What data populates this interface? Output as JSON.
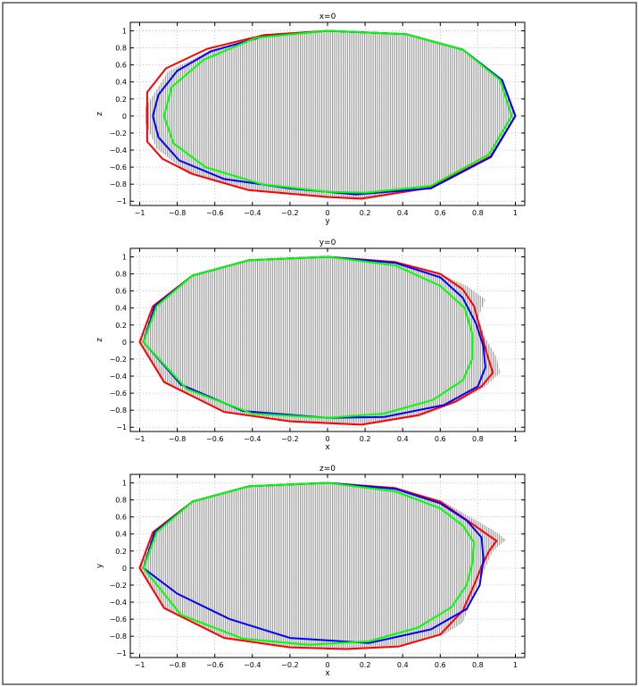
{
  "figure": {
    "frame_color": "#000000",
    "grid_color": "#9a9a9a",
    "hatch_color": "#8c8c8c",
    "background": "#ffffff"
  },
  "chart_data": [
    {
      "type": "line",
      "title": "x=0",
      "xlabel": "y",
      "ylabel": "z",
      "xlim": [
        -1.05,
        1.05
      ],
      "ylim": [
        -1.05,
        1.1
      ],
      "xticks": [
        -1,
        -0.8,
        -0.6,
        -0.4,
        -0.2,
        0,
        0.2,
        0.4,
        0.6,
        0.8,
        1
      ],
      "xticklabels": [
        "−1",
        "−0.8",
        "−0.6",
        "−0.4",
        "−0.2",
        "0",
        "0.2",
        "0.4",
        "0.6",
        "0.8",
        "1"
      ],
      "yticks": [
        -1,
        -0.8,
        -0.6,
        -0.4,
        -0.2,
        0,
        0.2,
        0.4,
        0.6,
        0.8,
        1
      ],
      "yticklabels": [
        "−1",
        "−0.8",
        "−0.6",
        "−0.4",
        "−0.2",
        "0",
        "0.2",
        "0.4",
        "0.6",
        "0.8",
        "1"
      ],
      "grid": true,
      "series": [
        {
          "color": "#808080",
          "style": "hatched-fill",
          "points": [
            [
              1.0,
              0.0
            ],
            [
              0.93,
              0.42
            ],
            [
              0.72,
              0.78
            ],
            [
              0.42,
              0.96
            ],
            [
              0.0,
              1.0
            ],
            [
              -0.32,
              0.94
            ],
            [
              -0.62,
              0.78
            ],
            [
              -0.85,
              0.52
            ],
            [
              -0.97,
              0.1
            ],
            [
              -0.97,
              -0.08
            ],
            [
              -0.91,
              -0.38
            ],
            [
              -0.74,
              -0.68
            ],
            [
              -0.42,
              -0.88
            ],
            [
              0.0,
              -0.96
            ],
            [
              0.18,
              -0.985
            ],
            [
              0.55,
              -0.85
            ],
            [
              0.87,
              -0.48
            ],
            [
              1.0,
              0.0
            ]
          ]
        },
        {
          "color": "#ff0000",
          "points": [
            [
              1.0,
              0.0
            ],
            [
              0.93,
              0.42
            ],
            [
              0.72,
              0.78
            ],
            [
              0.42,
              0.96
            ],
            [
              0.0,
              1.0
            ],
            [
              -0.34,
              0.95
            ],
            [
              -0.64,
              0.79
            ],
            [
              -0.86,
              0.56
            ],
            [
              -0.96,
              0.28
            ],
            [
              -0.96,
              -0.3
            ],
            [
              -0.88,
              -0.5
            ],
            [
              -0.72,
              -0.68
            ],
            [
              -0.42,
              -0.87
            ],
            [
              0.0,
              -0.95
            ],
            [
              0.18,
              -0.97
            ],
            [
              0.55,
              -0.84
            ],
            [
              0.87,
              -0.47
            ],
            [
              1.0,
              0.0
            ]
          ]
        },
        {
          "color": "#0000ff",
          "points": [
            [
              1.0,
              0.0
            ],
            [
              0.93,
              0.42
            ],
            [
              0.72,
              0.78
            ],
            [
              0.42,
              0.96
            ],
            [
              0.0,
              1.0
            ],
            [
              -0.35,
              0.93
            ],
            [
              -0.62,
              0.76
            ],
            [
              -0.8,
              0.53
            ],
            [
              -0.9,
              0.25
            ],
            [
              -0.93,
              0.0
            ],
            [
              -0.9,
              -0.25
            ],
            [
              -0.79,
              -0.52
            ],
            [
              -0.55,
              -0.74
            ],
            [
              -0.2,
              -0.85
            ],
            [
              0.15,
              -0.92
            ],
            [
              0.55,
              -0.85
            ],
            [
              0.87,
              -0.48
            ],
            [
              1.0,
              0.0
            ]
          ]
        },
        {
          "color": "#00ff00",
          "points": [
            [
              0.98,
              0.0
            ],
            [
              0.92,
              0.42
            ],
            [
              0.72,
              0.78
            ],
            [
              0.42,
              0.96
            ],
            [
              0.0,
              1.0
            ],
            [
              -0.38,
              0.92
            ],
            [
              -0.66,
              0.66
            ],
            [
              -0.83,
              0.34
            ],
            [
              -0.87,
              0.0
            ],
            [
              -0.82,
              -0.32
            ],
            [
              -0.65,
              -0.6
            ],
            [
              -0.35,
              -0.8
            ],
            [
              0.0,
              -0.89
            ],
            [
              0.2,
              -0.9
            ],
            [
              0.55,
              -0.82
            ],
            [
              0.86,
              -0.45
            ],
            [
              0.98,
              0.0
            ]
          ]
        }
      ]
    },
    {
      "type": "line",
      "title": "y=0",
      "xlabel": "x",
      "ylabel": "z",
      "xlim": [
        -1.05,
        1.05
      ],
      "ylim": [
        -1.05,
        1.1
      ],
      "xticks": [
        -1,
        -0.8,
        -0.6,
        -0.4,
        -0.2,
        0,
        0.2,
        0.4,
        0.6,
        0.8,
        1
      ],
      "xticklabels": [
        "−1",
        "−0.8",
        "−0.6",
        "−0.4",
        "−0.2",
        "0",
        "0.2",
        "0.4",
        "0.6",
        "0.8",
        "1"
      ],
      "yticks": [
        -1,
        -0.8,
        -0.6,
        -0.4,
        -0.2,
        0,
        0.2,
        0.4,
        0.6,
        0.8,
        1
      ],
      "yticklabels": [
        "−1",
        "−0.8",
        "−0.6",
        "−0.4",
        "−0.2",
        "0",
        "0.2",
        "0.4",
        "0.6",
        "0.8",
        "1"
      ],
      "grid": true,
      "series": [
        {
          "color": "#808080",
          "style": "hatched-fill",
          "points": [
            [
              -1.0,
              0.0
            ],
            [
              -0.93,
              0.42
            ],
            [
              -0.72,
              0.78
            ],
            [
              -0.42,
              0.96
            ],
            [
              0.0,
              1.0
            ],
            [
              0.34,
              0.94
            ],
            [
              0.6,
              0.8
            ],
            [
              0.74,
              0.66
            ],
            [
              0.84,
              0.5
            ],
            [
              0.8,
              0.28
            ],
            [
              0.84,
              0.05
            ],
            [
              0.9,
              -0.18
            ],
            [
              0.92,
              -0.36
            ],
            [
              0.84,
              -0.52
            ],
            [
              0.7,
              -0.7
            ],
            [
              0.5,
              -0.87
            ],
            [
              0.18,
              -0.98
            ],
            [
              -0.2,
              -0.93
            ],
            [
              -0.55,
              -0.82
            ],
            [
              -0.87,
              -0.47
            ],
            [
              -1.0,
              0.0
            ]
          ]
        },
        {
          "color": "#ff0000",
          "points": [
            [
              -1.0,
              0.0
            ],
            [
              -0.93,
              0.42
            ],
            [
              -0.72,
              0.78
            ],
            [
              -0.42,
              0.96
            ],
            [
              0.0,
              1.0
            ],
            [
              0.36,
              0.94
            ],
            [
              0.6,
              0.8
            ],
            [
              0.72,
              0.62
            ],
            [
              0.78,
              0.42
            ],
            [
              0.82,
              0.1
            ],
            [
              0.85,
              -0.15
            ],
            [
              0.88,
              -0.36
            ],
            [
              0.82,
              -0.52
            ],
            [
              0.68,
              -0.7
            ],
            [
              0.48,
              -0.86
            ],
            [
              0.18,
              -0.97
            ],
            [
              -0.2,
              -0.93
            ],
            [
              -0.55,
              -0.82
            ],
            [
              -0.87,
              -0.47
            ],
            [
              -1.0,
              0.0
            ]
          ]
        },
        {
          "color": "#0000ff",
          "points": [
            [
              -0.98,
              0.0
            ],
            [
              -0.92,
              0.42
            ],
            [
              -0.72,
              0.78
            ],
            [
              -0.42,
              0.96
            ],
            [
              0.0,
              1.0
            ],
            [
              0.36,
              0.93
            ],
            [
              0.6,
              0.76
            ],
            [
              0.72,
              0.52
            ],
            [
              0.79,
              0.22
            ],
            [
              0.83,
              -0.05
            ],
            [
              0.84,
              -0.3
            ],
            [
              0.8,
              -0.52
            ],
            [
              0.62,
              -0.74
            ],
            [
              0.3,
              -0.88
            ],
            [
              0.0,
              -0.89
            ],
            [
              -0.45,
              -0.81
            ],
            [
              -0.78,
              -0.5
            ],
            [
              -0.98,
              0.0
            ]
          ]
        },
        {
          "color": "#00ff00",
          "points": [
            [
              -0.98,
              0.0
            ],
            [
              -0.91,
              0.42
            ],
            [
              -0.72,
              0.78
            ],
            [
              -0.42,
              0.96
            ],
            [
              0.0,
              1.0
            ],
            [
              0.36,
              0.9
            ],
            [
              0.6,
              0.66
            ],
            [
              0.73,
              0.4
            ],
            [
              0.77,
              0.1
            ],
            [
              0.77,
              -0.2
            ],
            [
              0.72,
              -0.45
            ],
            [
              0.56,
              -0.68
            ],
            [
              0.3,
              -0.84
            ],
            [
              0.0,
              -0.89
            ],
            [
              -0.4,
              -0.84
            ],
            [
              -0.75,
              -0.55
            ],
            [
              -0.98,
              0.0
            ]
          ]
        }
      ]
    },
    {
      "type": "line",
      "title": "z=0",
      "xlabel": "x",
      "ylabel": "y",
      "xlim": [
        -1.05,
        1.05
      ],
      "ylim": [
        -1.05,
        1.1
      ],
      "xticks": [
        -1,
        -0.8,
        -0.6,
        -0.4,
        -0.2,
        0,
        0.2,
        0.4,
        0.6,
        0.8,
        1
      ],
      "xticklabels": [
        "−1",
        "−0.8",
        "−0.6",
        "−0.4",
        "−0.2",
        "0",
        "0.2",
        "0.4",
        "0.6",
        "0.8",
        "1"
      ],
      "yticks": [
        -1,
        -0.8,
        -0.6,
        -0.4,
        -0.2,
        0,
        0.2,
        0.4,
        0.6,
        0.8,
        1
      ],
      "yticklabels": [
        "−1",
        "−0.8",
        "−0.6",
        "−0.4",
        "−0.2",
        "0",
        "0.2",
        "0.4",
        "0.6",
        "0.8",
        "1"
      ],
      "grid": true,
      "series": [
        {
          "color": "#808080",
          "style": "hatched-fill",
          "points": [
            [
              -1.0,
              0.0
            ],
            [
              -0.93,
              0.42
            ],
            [
              -0.72,
              0.78
            ],
            [
              -0.42,
              0.96
            ],
            [
              0.0,
              1.0
            ],
            [
              0.34,
              0.94
            ],
            [
              0.6,
              0.8
            ],
            [
              0.76,
              0.6
            ],
            [
              0.9,
              0.42
            ],
            [
              0.95,
              0.33
            ],
            [
              0.88,
              0.2
            ],
            [
              0.84,
              0.0
            ],
            [
              0.8,
              -0.18
            ],
            [
              0.76,
              -0.42
            ],
            [
              0.72,
              -0.64
            ],
            [
              0.62,
              -0.78
            ],
            [
              0.4,
              -0.9
            ],
            [
              0.15,
              -0.95
            ],
            [
              -0.2,
              -0.93
            ],
            [
              -0.55,
              -0.82
            ],
            [
              -0.87,
              -0.47
            ],
            [
              -1.0,
              0.0
            ]
          ]
        },
        {
          "color": "#ff0000",
          "points": [
            [
              -1.0,
              0.0
            ],
            [
              -0.93,
              0.42
            ],
            [
              -0.72,
              0.78
            ],
            [
              -0.42,
              0.96
            ],
            [
              0.0,
              1.0
            ],
            [
              0.36,
              0.94
            ],
            [
              0.6,
              0.78
            ],
            [
              0.75,
              0.55
            ],
            [
              0.86,
              0.38
            ],
            [
              0.9,
              0.32
            ],
            [
              0.86,
              0.2
            ],
            [
              0.82,
              0.02
            ],
            [
              0.78,
              -0.2
            ],
            [
              0.72,
              -0.5
            ],
            [
              0.6,
              -0.78
            ],
            [
              0.38,
              -0.92
            ],
            [
              0.1,
              -0.95
            ],
            [
              -0.2,
              -0.93
            ],
            [
              -0.55,
              -0.82
            ],
            [
              -0.87,
              -0.47
            ],
            [
              -1.0,
              0.0
            ]
          ]
        },
        {
          "color": "#0000ff",
          "points": [
            [
              -0.98,
              0.0
            ],
            [
              -0.92,
              0.42
            ],
            [
              -0.72,
              0.78
            ],
            [
              -0.42,
              0.96
            ],
            [
              0.0,
              1.0
            ],
            [
              0.36,
              0.93
            ],
            [
              0.6,
              0.76
            ],
            [
              0.74,
              0.56
            ],
            [
              0.82,
              0.36
            ],
            [
              0.83,
              0.1
            ],
            [
              0.81,
              -0.2
            ],
            [
              0.74,
              -0.48
            ],
            [
              0.55,
              -0.72
            ],
            [
              0.22,
              -0.88
            ],
            [
              -0.2,
              -0.82
            ],
            [
              -0.52,
              -0.6
            ],
            [
              -0.8,
              -0.3
            ],
            [
              -0.98,
              0.0
            ]
          ]
        },
        {
          "color": "#00ff00",
          "points": [
            [
              -0.98,
              0.0
            ],
            [
              -0.91,
              0.42
            ],
            [
              -0.72,
              0.78
            ],
            [
              -0.42,
              0.96
            ],
            [
              0.0,
              1.0
            ],
            [
              0.36,
              0.9
            ],
            [
              0.6,
              0.7
            ],
            [
              0.72,
              0.5
            ],
            [
              0.78,
              0.3
            ],
            [
              0.77,
              0.05
            ],
            [
              0.74,
              -0.2
            ],
            [
              0.66,
              -0.46
            ],
            [
              0.48,
              -0.7
            ],
            [
              0.22,
              -0.86
            ],
            [
              -0.1,
              -0.9
            ],
            [
              -0.45,
              -0.83
            ],
            [
              -0.78,
              -0.55
            ],
            [
              -0.98,
              0.0
            ]
          ]
        }
      ]
    }
  ]
}
